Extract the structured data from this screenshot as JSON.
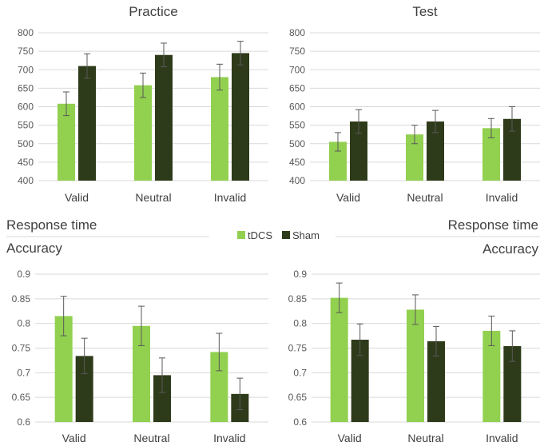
{
  "labels": {
    "response_time_left": "Response time",
    "response_time_right": "Response time",
    "accuracy_left": "Accuracy",
    "accuracy_right": "Accuracy"
  },
  "legend": {
    "entries": [
      {
        "name": "tDCS",
        "color": "#92d050"
      },
      {
        "name": "Sham",
        "color": "#2e3b1a"
      }
    ]
  },
  "colors": {
    "tdcs": "#92d050",
    "sham": "#2e3b1a",
    "axis_text": "#595959",
    "gridline": "#d9d9d9",
    "error_bar": "#595959"
  },
  "chart_data": [
    {
      "id": "rt-practice",
      "type": "bar",
      "title": "Practice",
      "categories": [
        "Valid",
        "Neutral",
        "Invalid"
      ],
      "series": [
        {
          "name": "tDCS",
          "values": [
            608,
            658,
            680
          ],
          "errors": [
            32,
            33,
            35
          ]
        },
        {
          "name": "Sham",
          "values": [
            710,
            740,
            745
          ],
          "errors": [
            33,
            32,
            32
          ]
        }
      ],
      "ylim": [
        400,
        800
      ],
      "yticks": [
        "400",
        "450",
        "500",
        "550",
        "600",
        "650",
        "700",
        "750",
        "800"
      ],
      "xlabel": "",
      "ylabel": ""
    },
    {
      "id": "rt-test",
      "type": "bar",
      "title": "Test",
      "categories": [
        "Valid",
        "Neutral",
        "Invalid"
      ],
      "series": [
        {
          "name": "tDCS",
          "values": [
            505,
            525,
            542
          ],
          "errors": [
            25,
            25,
            26
          ]
        },
        {
          "name": "Sham",
          "values": [
            560,
            560,
            567
          ],
          "errors": [
            32,
            30,
            33
          ]
        }
      ],
      "ylim": [
        400,
        800
      ],
      "yticks": [
        "400",
        "450",
        "500",
        "550",
        "600",
        "650",
        "700",
        "750",
        "800"
      ],
      "xlabel": "",
      "ylabel": ""
    },
    {
      "id": "acc-practice",
      "type": "bar",
      "title": "",
      "categories": [
        "Valid",
        "Neutral",
        "Invalid"
      ],
      "series": [
        {
          "name": "tDCS",
          "values": [
            0.815,
            0.795,
            0.742
          ],
          "errors": [
            0.04,
            0.04,
            0.038
          ]
        },
        {
          "name": "Sham",
          "values": [
            0.734,
            0.695,
            0.657
          ],
          "errors": [
            0.036,
            0.035,
            0.032
          ]
        }
      ],
      "ylim": [
        0.6,
        0.9
      ],
      "yticks": [
        "0.6",
        "0.65",
        "0.7",
        "0.75",
        "0.8",
        "0.85",
        "0.9"
      ],
      "xlabel": "",
      "ylabel": ""
    },
    {
      "id": "acc-test",
      "type": "bar",
      "title": "",
      "categories": [
        "Valid",
        "Neutral",
        "Invalid"
      ],
      "series": [
        {
          "name": "tDCS",
          "values": [
            0.852,
            0.828,
            0.785
          ],
          "errors": [
            0.03,
            0.03,
            0.03
          ]
        },
        {
          "name": "Sham",
          "values": [
            0.767,
            0.764,
            0.754
          ],
          "errors": [
            0.032,
            0.03,
            0.031
          ]
        }
      ],
      "ylim": [
        0.6,
        0.9
      ],
      "yticks": [
        "0.6",
        "0.65",
        "0.7",
        "0.75",
        "0.8",
        "0.85",
        "0.9"
      ],
      "xlabel": "",
      "ylabel": ""
    }
  ]
}
